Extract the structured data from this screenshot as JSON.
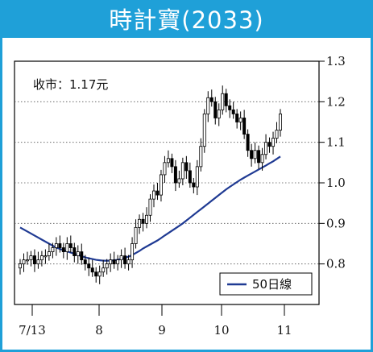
{
  "title": "時計寶(2033)",
  "annotation": "收市：1.17元",
  "colors": {
    "brand": "#1fa0d8",
    "ma_line": "#1f3a93",
    "candle": "#000000",
    "grid": "#555555"
  },
  "chart_data": {
    "type": "candlestick",
    "x_tick_labels": [
      "7/13",
      "8",
      "9",
      "10",
      "11"
    ],
    "y_ticks": [
      0.8,
      0.9,
      1.0,
      1.1,
      1.2,
      1.3
    ],
    "ylim": [
      0.7,
      1.3
    ],
    "y_axis_position": "right",
    "grid": "horizontal-dotted",
    "legend": {
      "placement": "bottom-right",
      "entries": [
        "50日線"
      ]
    },
    "last_close": 1.17,
    "close": [
      0.8,
      0.81,
      0.81,
      0.82,
      0.8,
      0.81,
      0.82,
      0.82,
      0.83,
      0.84,
      0.85,
      0.84,
      0.83,
      0.85,
      0.84,
      0.82,
      0.83,
      0.81,
      0.8,
      0.79,
      0.78,
      0.77,
      0.78,
      0.79,
      0.8,
      0.81,
      0.8,
      0.81,
      0.82,
      0.8,
      0.81,
      0.85,
      0.89,
      0.91,
      0.9,
      0.92,
      0.96,
      0.98,
      0.97,
      1.02,
      1.05,
      1.06,
      1.04,
      1.0,
      1.01,
      1.05,
      1.03,
      1.0,
      0.99,
      1.04,
      1.09,
      1.17,
      1.21,
      1.2,
      1.16,
      1.18,
      1.22,
      1.19,
      1.18,
      1.17,
      1.15,
      1.16,
      1.12,
      1.08,
      1.06,
      1.08,
      1.05,
      1.07,
      1.1,
      1.09,
      1.11,
      1.13,
      1.17
    ],
    "ma50": [
      0.89,
      0.885,
      0.88,
      0.875,
      0.87,
      0.865,
      0.86,
      0.855,
      0.85,
      0.845,
      0.84,
      0.837,
      0.834,
      0.831,
      0.828,
      0.825,
      0.822,
      0.819,
      0.816,
      0.814,
      0.812,
      0.81,
      0.809,
      0.808,
      0.808,
      0.808,
      0.809,
      0.81,
      0.812,
      0.815,
      0.818,
      0.822,
      0.827,
      0.832,
      0.838,
      0.843,
      0.848,
      0.853,
      0.858,
      0.864,
      0.87,
      0.876,
      0.882,
      0.888,
      0.894,
      0.9,
      0.907,
      0.914,
      0.921,
      0.928,
      0.935,
      0.942,
      0.949,
      0.956,
      0.963,
      0.97,
      0.977,
      0.984,
      0.99,
      0.996,
      1.002,
      1.008,
      1.013,
      1.018,
      1.023,
      1.028,
      1.033,
      1.038,
      1.043,
      1.048,
      1.053,
      1.059,
      1.065
    ]
  }
}
